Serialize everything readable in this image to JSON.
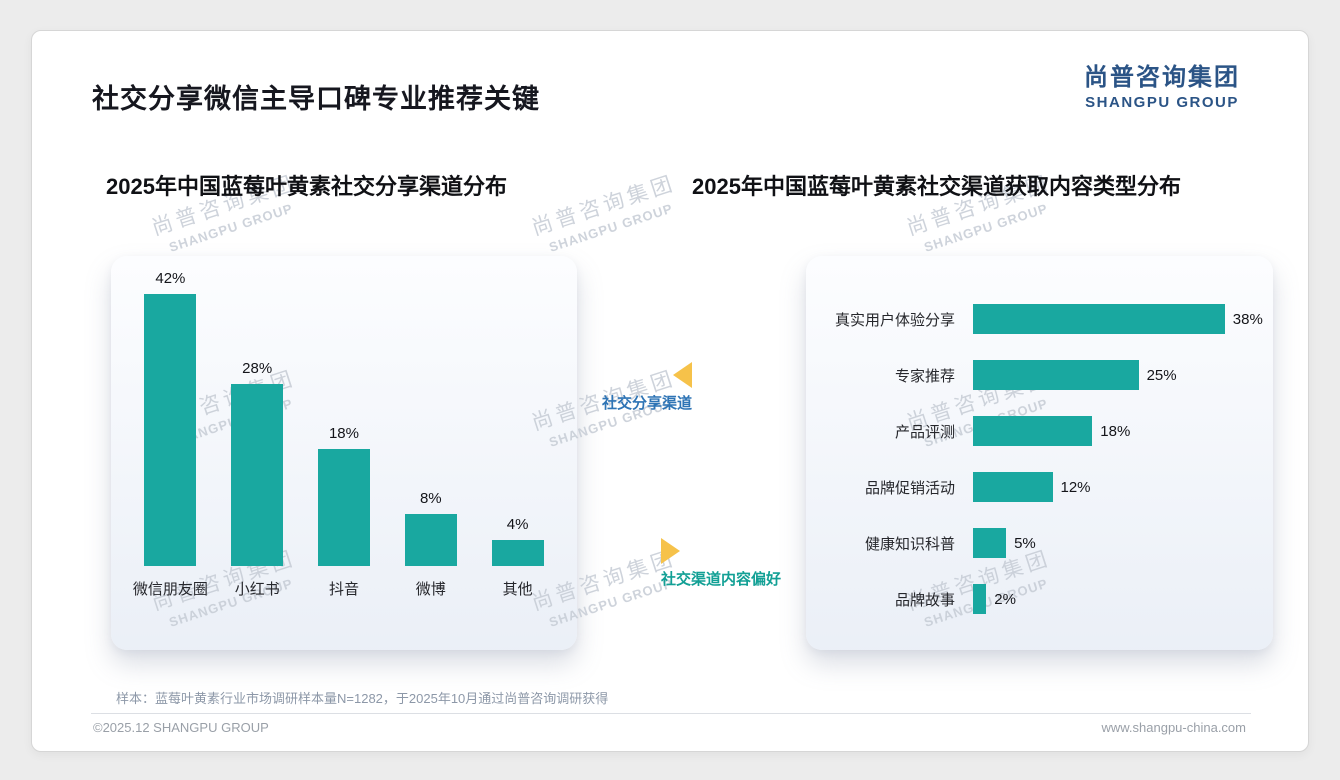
{
  "page": {
    "title": "社交分享微信主导口碑专业推荐关键",
    "logo": {
      "cn": "尚普咨询集团",
      "en": "SHANGPU GROUP"
    },
    "watermark": {
      "cn": "尚普咨询集团",
      "en": "SHANGPU GROUP"
    },
    "annotations": {
      "left_label": "社交分享渠道",
      "right_label": "社交渠道内容偏好"
    },
    "footer": {
      "sample_note": "样本：蓝莓叶黄素行业市场调研样本量N=1282，于2025年10月通过尚普咨询调研获得",
      "copyright": "©2025.12 SHANGPU GROUP",
      "website": "www.shangpu-china.com"
    },
    "colors": {
      "bar": "#19a8a0",
      "triangle": "#f6c24a",
      "annotation_blue": "#2e74b5",
      "annotation_teal": "#12a095",
      "logo_blue": "#2b5486"
    }
  },
  "chart_data": [
    {
      "type": "bar",
      "orientation": "vertical",
      "title": "2025年中国蓝莓叶黄素社交分享渠道分布",
      "categories": [
        "微信朋友圈",
        "小红书",
        "抖音",
        "微博",
        "其他"
      ],
      "values": [
        42,
        28,
        18,
        8,
        4
      ],
      "unit": "%",
      "ylim": [
        0,
        45
      ],
      "grid": false,
      "legend": false,
      "data_labels": true
    },
    {
      "type": "bar",
      "orientation": "horizontal",
      "title": "2025年中国蓝莓叶黄素社交渠道获取内容类型分布",
      "categories": [
        "真实用户体验分享",
        "专家推荐",
        "产品评测",
        "品牌促销活动",
        "健康知识科普",
        "品牌故事"
      ],
      "values": [
        38,
        25,
        18,
        12,
        5,
        2
      ],
      "unit": "%",
      "xlim": [
        0,
        40
      ],
      "grid": false,
      "legend": false,
      "data_labels": true
    }
  ]
}
